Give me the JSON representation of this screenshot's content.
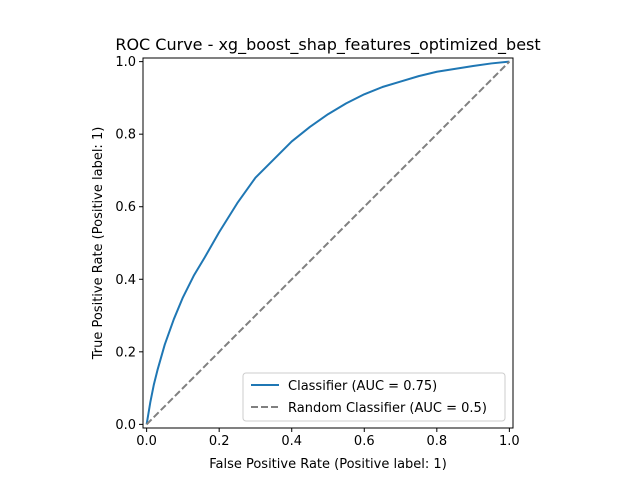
{
  "chart_data": {
    "type": "line",
    "title": "ROC Curve - xg_boost_shap_features_optimized_best",
    "xlabel": "False Positive Rate (Positive label: 1)",
    "ylabel": "True Positive Rate (Positive label: 1)",
    "xlim": [
      -0.01,
      1.01
    ],
    "ylim": [
      -0.01,
      1.01
    ],
    "xticks": [
      0.0,
      0.2,
      0.4,
      0.6,
      0.8,
      1.0
    ],
    "xtick_labels": [
      "0.0",
      "0.2",
      "0.4",
      "0.6",
      "0.8",
      "1.0"
    ],
    "yticks": [
      0.0,
      0.2,
      0.4,
      0.6,
      0.8,
      1.0
    ],
    "ytick_labels": [
      "0.0",
      "0.2",
      "0.4",
      "0.6",
      "0.8",
      "1.0"
    ],
    "grid": false,
    "legend_position": "lower-right",
    "series": [
      {
        "name": "Classifier (AUC = 0.75)",
        "color": "#1f77b4",
        "style": "solid",
        "x": [
          0.0,
          0.01,
          0.02,
          0.03,
          0.05,
          0.075,
          0.1,
          0.13,
          0.16,
          0.2,
          0.25,
          0.3,
          0.35,
          0.4,
          0.45,
          0.5,
          0.55,
          0.6,
          0.65,
          0.7,
          0.75,
          0.8,
          0.85,
          0.9,
          0.95,
          1.0
        ],
        "y": [
          0.0,
          0.06,
          0.11,
          0.15,
          0.22,
          0.29,
          0.35,
          0.41,
          0.46,
          0.53,
          0.61,
          0.68,
          0.73,
          0.78,
          0.82,
          0.855,
          0.885,
          0.91,
          0.93,
          0.945,
          0.96,
          0.972,
          0.98,
          0.988,
          0.995,
          1.0
        ]
      },
      {
        "name": "Random Classifier (AUC = 0.5)",
        "color": "#808080",
        "style": "dashed",
        "x": [
          0.0,
          1.0
        ],
        "y": [
          0.0,
          1.0
        ]
      }
    ]
  }
}
